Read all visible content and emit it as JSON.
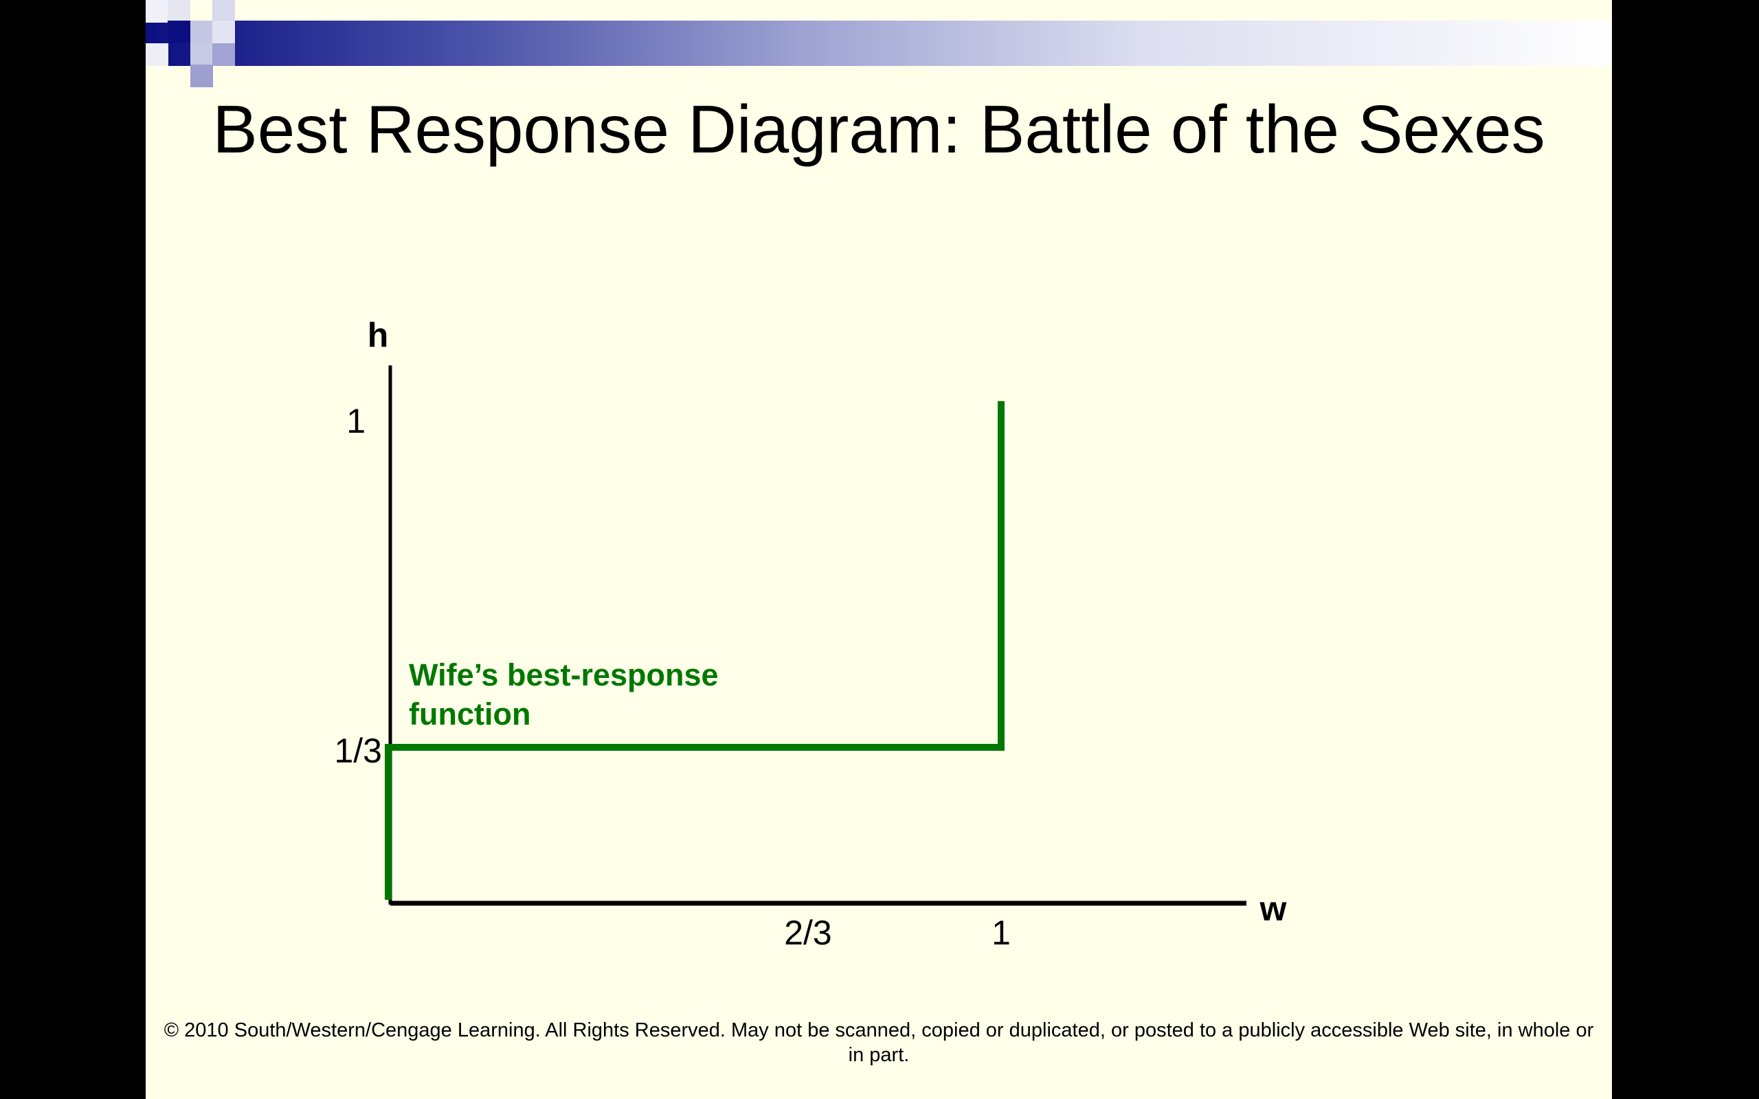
{
  "slide": {
    "title": "Best Response Diagram: Battle of the Sexes",
    "footer": "© 2010 South/Western/Cengage Learning. All Rights Reserved. May not be scanned, copied or duplicated, or posted to a publicly accessible Web site, in whole or in part."
  },
  "colors": {
    "background": "#ffffea",
    "accent": "#0c0f80",
    "best_response": "#007800",
    "axis": "#000000"
  },
  "diagram": {
    "y_axis_label": "h",
    "x_axis_label": "w",
    "y_ticks": [
      "1",
      "1/3"
    ],
    "x_ticks": [
      "2/3",
      "1"
    ],
    "curve_label_line1": "Wife’s best-response",
    "curve_label_line2": "function",
    "wife_best_response": {
      "h_threshold": "1/3",
      "w_at_low_h": 0,
      "w_at_high_h": 1
    }
  }
}
